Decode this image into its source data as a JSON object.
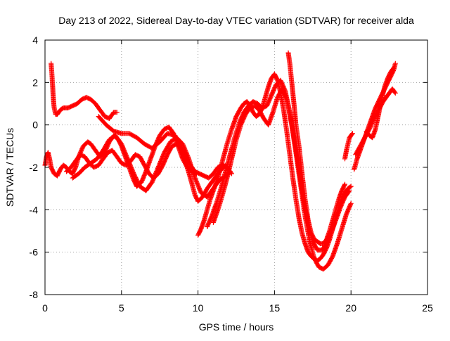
{
  "chart_data": {
    "type": "scatter",
    "title": "Day 213 of 2022, Sidereal Day-to-day VTEC variation (SDTVAR) for receiver alda",
    "xlabel": "GPS time / hours",
    "ylabel": "SDTVAR / TECUs",
    "xlim": [
      0,
      25
    ],
    "ylim": [
      -8,
      4
    ],
    "x_ticks": [
      0,
      5,
      10,
      15,
      20,
      25
    ],
    "y_ticks": [
      -8,
      -6,
      -4,
      -2,
      0,
      2,
      4
    ],
    "x_tick_labels": [
      "0",
      "5",
      "10",
      "15",
      "20",
      "25"
    ],
    "y_tick_labels": [
      "-8",
      "-6",
      "-4",
      "-2",
      "0",
      "2",
      "4"
    ],
    "grid": true,
    "marker": "plus",
    "colors": {
      "series": "#ff0000",
      "grid": "#a0a0a0",
      "axis": "#000000"
    },
    "series": [
      {
        "x": [
          0.0,
          0.1,
          0.2,
          0.3,
          0.4,
          0.6,
          0.8,
          1.0,
          1.2,
          1.4,
          1.6,
          1.8,
          2.0,
          2.2,
          2.5,
          2.8,
          3.0,
          3.3,
          3.6,
          3.9,
          4.2,
          4.5,
          4.8,
          5.0,
          5.2,
          5.5,
          5.8,
          6.0,
          6.3,
          6.6,
          6.9,
          7.2,
          7.5,
          7.8,
          8.1,
          8.4,
          8.7,
          9.0,
          9.3,
          9.6,
          9.9
        ],
        "y": [
          -1.9,
          -1.5,
          -1.3,
          -1.6,
          -2.0,
          -2.3,
          -2.4,
          -2.1,
          -1.9,
          -2.0,
          -2.2,
          -2.3,
          -2.0,
          -1.5,
          -1.0,
          -0.8,
          -0.9,
          -1.2,
          -1.5,
          -1.3,
          -0.8,
          -0.5,
          -0.7,
          -1.0,
          -1.4,
          -2.0,
          -2.6,
          -2.9,
          -2.7,
          -2.2,
          -1.6,
          -1.0,
          -0.5,
          -0.2,
          -0.1,
          -0.4,
          -1.0,
          -1.6,
          -2.0,
          -2.2,
          -2.3
        ]
      },
      {
        "x": [
          0.4,
          0.45,
          0.5,
          0.55,
          0.6,
          0.7,
          0.8,
          1.0,
          1.2,
          1.5,
          1.8,
          2.1,
          2.4,
          2.7,
          3.0,
          3.3,
          3.6,
          3.9,
          4.2,
          4.5,
          4.7
        ],
        "y": [
          2.9,
          2.4,
          1.8,
          1.2,
          0.8,
          0.5,
          0.5,
          0.7,
          0.8,
          0.8,
          0.9,
          1.0,
          1.2,
          1.3,
          1.2,
          1.0,
          0.7,
          0.4,
          0.3,
          0.6,
          0.6
        ]
      },
      {
        "x": [
          1.4,
          1.7,
          2.0,
          2.3,
          2.6,
          2.9,
          3.2,
          3.5,
          3.8,
          4.1,
          4.4,
          4.7,
          5.0,
          5.3,
          5.6,
          5.9,
          6.2,
          6.5,
          6.8,
          7.1,
          7.4,
          7.7,
          8.0,
          8.3,
          8.6,
          8.9,
          9.2,
          9.5,
          9.8,
          10.1,
          10.4,
          10.7,
          11.0,
          11.3,
          11.6,
          11.9,
          12.2
        ],
        "y": [
          -2.2,
          -2.0,
          -1.7,
          -1.4,
          -1.5,
          -1.8,
          -2.0,
          -1.9,
          -1.6,
          -1.3,
          -1.2,
          -1.5,
          -1.8,
          -1.9,
          -1.7,
          -1.4,
          -1.5,
          -1.9,
          -2.3,
          -2.5,
          -2.3,
          -1.9,
          -1.4,
          -1.0,
          -0.9,
          -1.1,
          -1.5,
          -1.9,
          -2.2,
          -2.3,
          -2.4,
          -2.5,
          -2.3,
          -2.0,
          -1.9,
          -2.0,
          -2.3
        ]
      },
      {
        "x": [
          1.8,
          2.2,
          2.6,
          3.0,
          3.4,
          3.8,
          4.2,
          4.6,
          5.0,
          5.4,
          5.8,
          6.2,
          6.6,
          7.0,
          7.4,
          7.8,
          8.2,
          8.6,
          9.0,
          9.4,
          9.8,
          10.2,
          10.6,
          11.0,
          11.4,
          11.8,
          12.1
        ],
        "y": [
          -2.5,
          -2.3,
          -2.0,
          -1.8,
          -1.6,
          -1.2,
          -0.7,
          -0.5,
          -0.9,
          -1.6,
          -2.3,
          -2.9,
          -3.1,
          -2.7,
          -2.0,
          -1.3,
          -0.8,
          -0.6,
          -0.9,
          -1.6,
          -2.5,
          -3.2,
          -3.4,
          -3.0,
          -2.6,
          -2.4,
          -2.2
        ]
      },
      {
        "x": [
          3.5,
          4.0,
          4.5,
          5.0,
          5.5,
          6.0,
          6.5,
          7.0,
          7.5,
          8.0,
          8.5,
          9.0,
          9.5,
          9.8,
          10.0,
          10.3,
          10.6,
          11.0,
          11.4,
          11.8
        ],
        "y": [
          0.4,
          0.0,
          -0.3,
          -0.4,
          -0.4,
          -0.6,
          -0.9,
          -1.1,
          -0.8,
          -0.4,
          -0.5,
          -1.3,
          -2.5,
          -3.3,
          -3.6,
          -3.4,
          -3.0,
          -2.6,
          -2.2,
          -1.9
        ]
      },
      {
        "x": [
          10.0,
          10.2,
          10.4,
          10.6,
          10.8,
          11.0,
          11.3,
          11.6,
          11.9,
          12.2,
          12.5,
          12.8,
          13.0,
          13.2,
          13.4,
          13.6,
          13.8,
          14.0,
          14.2,
          14.4,
          14.6,
          14.8,
          15.0,
          15.2,
          15.4,
          15.6,
          15.8,
          16.0,
          16.2,
          16.4,
          16.6,
          16.8,
          17.0,
          17.2,
          17.4,
          17.6,
          17.8,
          18.0,
          18.2,
          18.4,
          18.6,
          18.8,
          19.0,
          19.2,
          19.4,
          19.6,
          19.8,
          20.0
        ],
        "y": [
          -5.2,
          -4.9,
          -4.5,
          -4.0,
          -3.5,
          -3.1,
          -2.5,
          -1.7,
          -0.9,
          -0.2,
          0.4,
          0.8,
          1.0,
          1.1,
          0.9,
          0.6,
          0.4,
          0.5,
          0.8,
          1.3,
          1.8,
          2.2,
          2.4,
          2.1,
          1.5,
          0.7,
          -0.3,
          -1.4,
          -2.5,
          -3.5,
          -4.4,
          -5.1,
          -5.6,
          -6.0,
          -6.2,
          -6.3,
          -6.4,
          -6.3,
          -6.1,
          -5.8,
          -5.4,
          -4.9,
          -4.4,
          -3.9,
          -3.5,
          -3.2,
          -3.0,
          -2.9
        ]
      },
      {
        "x": [
          10.6,
          10.9,
          11.2,
          11.5,
          11.8,
          12.1,
          12.4,
          12.7,
          13.0,
          13.3,
          13.6,
          13.9,
          14.2,
          14.5,
          14.8,
          15.1,
          15.4,
          15.7,
          16.0,
          16.3,
          16.6,
          16.9,
          17.2,
          17.5,
          17.8,
          18.1,
          18.4,
          18.7,
          19.0,
          19.3,
          19.6,
          19.9
        ],
        "y": [
          -4.8,
          -4.3,
          -3.7,
          -3.0,
          -2.2,
          -1.4,
          -0.6,
          0.1,
          0.6,
          0.9,
          1.1,
          1.0,
          0.8,
          0.9,
          1.4,
          1.9,
          2.1,
          1.6,
          0.6,
          -0.7,
          -2.1,
          -3.5,
          -4.7,
          -5.5,
          -5.9,
          -5.9,
          -5.6,
          -5.1,
          -4.5,
          -3.9,
          -3.4,
          -3.1
        ]
      },
      {
        "x": [
          11.0,
          11.3,
          11.6,
          11.9,
          12.2,
          12.5,
          12.8,
          13.1,
          13.4,
          13.7,
          14.0,
          14.3,
          14.6,
          14.9,
          15.2,
          15.5,
          15.8,
          16.1,
          16.4,
          16.7,
          17.0,
          17.3,
          17.6,
          17.9,
          18.2,
          18.5,
          18.8,
          19.1,
          19.4,
          19.7,
          20.0
        ],
        "y": [
          -4.6,
          -4.0,
          -3.3,
          -2.5,
          -1.6,
          -0.7,
          0.0,
          0.5,
          0.8,
          0.9,
          0.7,
          0.3,
          0.0,
          0.6,
          1.3,
          1.7,
          1.2,
          0.1,
          -1.3,
          -2.8,
          -4.3,
          -5.5,
          -6.3,
          -6.7,
          -6.8,
          -6.6,
          -6.2,
          -5.6,
          -4.9,
          -4.2,
          -3.7
        ]
      },
      {
        "x": [
          15.9,
          16.0,
          16.1,
          16.2,
          16.3,
          16.4,
          16.6,
          16.8,
          17.0,
          17.2,
          17.4,
          17.6,
          17.8,
          18.0,
          18.2,
          18.4,
          18.6,
          18.8,
          19.0,
          19.2,
          19.4,
          19.6
        ],
        "y": [
          3.4,
          2.9,
          2.2,
          1.5,
          0.8,
          0.0,
          -1.0,
          -2.3,
          -3.5,
          -4.5,
          -5.1,
          -5.4,
          -5.5,
          -5.6,
          -5.6,
          -5.4,
          -5.0,
          -4.5,
          -4.0,
          -3.5,
          -3.1,
          -2.8
        ]
      },
      {
        "x": [
          19.6,
          19.7,
          19.8,
          19.9,
          20.0,
          20.1
        ],
        "y": [
          -1.6,
          -1.2,
          -0.9,
          -0.6,
          -0.5,
          -0.4
        ]
      },
      {
        "x": [
          20.2,
          20.4,
          20.6,
          20.8,
          21.0,
          21.2,
          21.4,
          21.6,
          21.8,
          22.0,
          22.2,
          22.4,
          22.6,
          22.8,
          22.9
        ],
        "y": [
          -2.1,
          -1.6,
          -1.2,
          -0.8,
          -0.4,
          0.0,
          0.4,
          0.8,
          1.1,
          1.4,
          1.7,
          2.0,
          2.3,
          2.6,
          2.9
        ]
      },
      {
        "x": [
          20.3,
          20.6,
          20.9,
          21.2,
          21.5,
          21.8,
          22.1,
          22.4,
          22.7,
          22.9
        ],
        "y": [
          -1.4,
          -1.0,
          -0.6,
          -0.2,
          0.3,
          0.7,
          1.1,
          1.4,
          1.7,
          1.5
        ]
      },
      {
        "x": [
          21.0,
          21.2,
          21.4,
          21.6,
          21.8,
          22.0,
          22.2,
          22.4,
          22.6,
          22.8
        ],
        "y": [
          -0.3,
          -0.5,
          -0.6,
          -0.2,
          0.5,
          1.2,
          1.8,
          2.2,
          2.5,
          2.7
        ]
      }
    ]
  }
}
